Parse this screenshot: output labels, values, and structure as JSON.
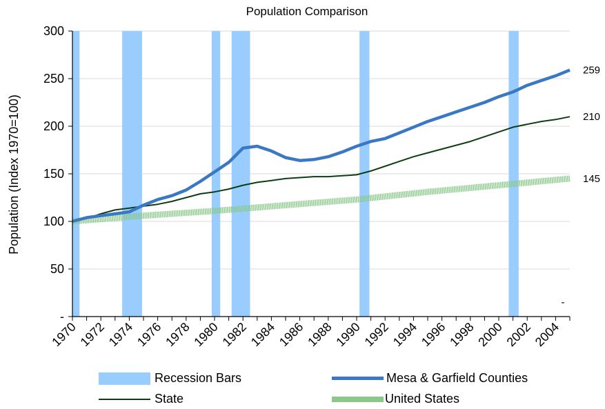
{
  "chart_data": {
    "type": "line",
    "title": "Population Comparison",
    "ylabel": "Population (Index 1970=100)",
    "xlabel": "",
    "ylim": [
      0,
      300
    ],
    "xlim": [
      1970,
      2005
    ],
    "ytick_labels": [
      "-",
      "50",
      "100",
      "150",
      "200",
      "250",
      "300"
    ],
    "yticks": [
      0,
      50,
      100,
      150,
      200,
      250,
      300
    ],
    "xticks": [
      1970,
      1972,
      1974,
      1976,
      1978,
      1980,
      1982,
      1984,
      1986,
      1988,
      1990,
      1992,
      1994,
      1996,
      1998,
      2000,
      2002,
      2004
    ],
    "grid": true,
    "legend_position": "bottom",
    "recession_bars": {
      "name": "Recession Bars",
      "color": "#99ccff",
      "periods": [
        [
          1970.0,
          1970.5
        ],
        [
          1973.5,
          1974.9
        ],
        [
          1979.8,
          1980.4
        ],
        [
          1981.2,
          1982.5
        ],
        [
          1990.2,
          1990.9
        ],
        [
          2000.7,
          2001.4
        ]
      ]
    },
    "series": [
      {
        "name": "Mesa & Garfield Counties",
        "color": "#3a78c3",
        "x": [
          1970,
          1971,
          1972,
          1973,
          1974,
          1975,
          1976,
          1977,
          1978,
          1979,
          1980,
          1981,
          1982,
          1983,
          1984,
          1985,
          1986,
          1987,
          1988,
          1989,
          1990,
          1991,
          1992,
          1993,
          1994,
          1995,
          1996,
          1997,
          1998,
          1999,
          2000,
          2001,
          2002,
          2003,
          2004,
          2005
        ],
        "values": [
          100,
          104,
          106,
          108,
          110,
          117,
          123,
          127,
          133,
          142,
          152,
          162,
          177,
          179,
          174,
          167,
          164,
          165,
          168,
          173,
          179,
          184,
          187,
          193,
          199,
          205,
          210,
          215,
          220,
          225,
          231,
          236,
          243,
          248,
          253,
          259
        ],
        "end_label": "259"
      },
      {
        "name": "State",
        "color": "#0b3d12",
        "x": [
          1970,
          1971,
          1972,
          1973,
          1974,
          1975,
          1976,
          1977,
          1978,
          1979,
          1980,
          1981,
          1982,
          1983,
          1984,
          1985,
          1986,
          1987,
          1988,
          1989,
          1990,
          1991,
          1992,
          1993,
          1994,
          1995,
          1996,
          1997,
          1998,
          1999,
          2000,
          2001,
          2002,
          2003,
          2004,
          2005
        ],
        "values": [
          100,
          103,
          108,
          112,
          114,
          116,
          118,
          121,
          125,
          129,
          131,
          134,
          138,
          141,
          143,
          145,
          146,
          147,
          147,
          148,
          149,
          153,
          158,
          163,
          168,
          172,
          176,
          180,
          184,
          189,
          194,
          199,
          202,
          205,
          207,
          210
        ],
        "end_label": "210"
      },
      {
        "name": "United States",
        "color": "#8bc98b",
        "x": [
          1970,
          1975,
          1980,
          1985,
          1990,
          1995,
          2000,
          2005
        ],
        "values": [
          100,
          106,
          111,
          117,
          123,
          131,
          138,
          145
        ],
        "end_label": "145"
      }
    ],
    "annotations": [
      "-"
    ]
  }
}
